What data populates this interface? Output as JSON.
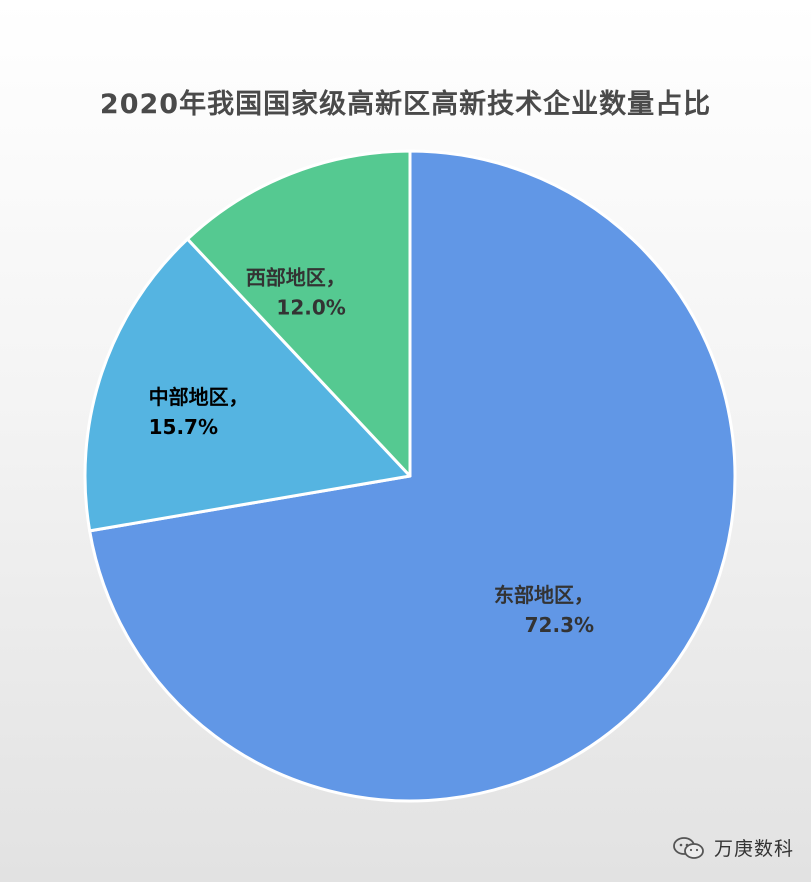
{
  "title": "2020年我国国家级高新区高新技术企业数量占比",
  "chart_data": {
    "type": "pie",
    "title": "2020年我国国家级高新区高新技术企业数量占比",
    "slices": [
      {
        "label": "东部地区，",
        "value": 72.3,
        "value_label": "72.3%",
        "color": "#6197e6",
        "text_color": "#333333"
      },
      {
        "label": "中部地区，",
        "value": 15.7,
        "value_label": "15.7%",
        "color": "#55b4e1",
        "text_color": "#000000"
      },
      {
        "label": "西部地区，",
        "value": 12.0,
        "value_label": "12.0%",
        "color": "#55c991",
        "text_color": "#333333"
      }
    ],
    "start": "12 o'clock",
    "direction": "clockwise",
    "legend": "none"
  },
  "watermark": {
    "icon": "wechat-icon",
    "text": "万庚数科"
  }
}
